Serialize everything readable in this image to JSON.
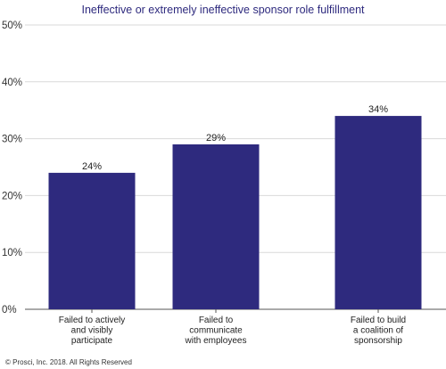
{
  "chart_data": {
    "type": "bar",
    "title": "Ineffective or extremely ineffective sponsor role fulfillment",
    "categories": [
      [
        "Failed to actively",
        "and visibly",
        "participate"
      ],
      [
        "Failed to",
        "communicate",
        "with employees"
      ],
      [
        "Failed to build",
        "a coalition of",
        "sponsorship"
      ]
    ],
    "values": [
      24,
      29,
      34
    ],
    "data_labels": [
      "24%",
      "29%",
      "34%"
    ],
    "ylim": [
      0,
      50
    ],
    "yticks": [
      0,
      10,
      20,
      30,
      40,
      50
    ],
    "ytick_labels": [
      "0%",
      "10%",
      "20%",
      "30%",
      "40%",
      "50%"
    ],
    "xlabel": "",
    "ylabel": "",
    "grid": "horizontal",
    "bar_color": "#2e2a7e",
    "title_color": "#2e2a7e"
  },
  "footer": {
    "copyright": "© Prosci, Inc. 2018. All Rights Reserved"
  }
}
